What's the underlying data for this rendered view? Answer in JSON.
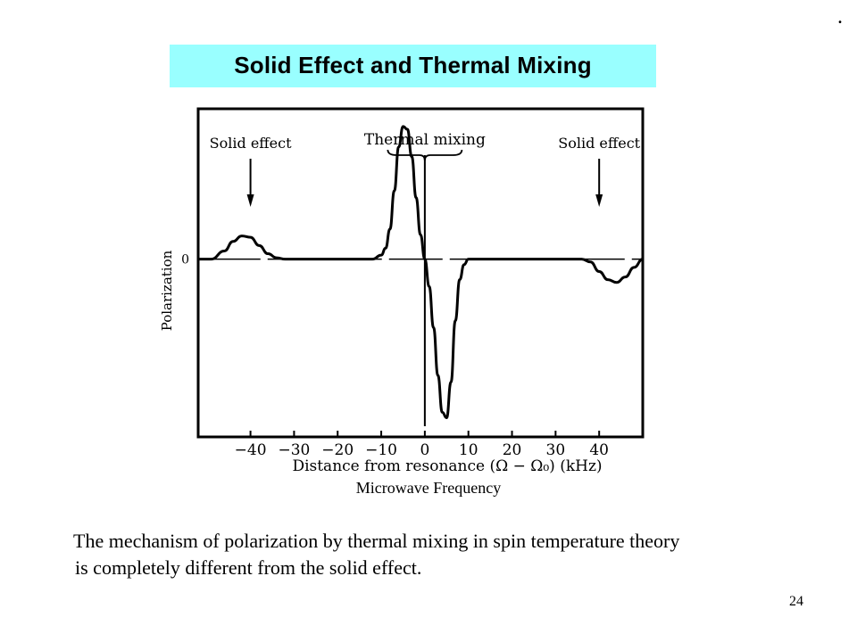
{
  "slide": {
    "corner_mark": ".",
    "title": "Solid Effect and Thermal Mixing",
    "figure_caption": "Microwave Frequency",
    "description_line1": "The mechanism of polarization by thermal mixing in spin temperature theory",
    "description_line2": "is completely different from the solid effect.",
    "page_number": "24",
    "title_bar_color": "#99ffff"
  },
  "chart_data": {
    "type": "line",
    "xlabel": "Distance from resonance (Ω − Ω₀) (kHz)",
    "ylabel": "Polarization",
    "xlim": [
      -52,
      50
    ],
    "ylim": [
      -1.3,
      1.1
    ],
    "x_tick_labels": [
      "−40",
      "−30",
      "−20",
      "−10",
      "0",
      "10",
      "20",
      "30",
      "40"
    ],
    "x_ticks": [
      -40,
      -30,
      -20,
      -10,
      0,
      10,
      20,
      30,
      40
    ],
    "y_tick_labels": [
      "0"
    ],
    "y_ticks": [
      0
    ],
    "annotations": [
      {
        "text": "Solid effect",
        "x": -40
      },
      {
        "text": "Thermal mixing",
        "x": 0
      },
      {
        "text": "Solid effect",
        "x": 40
      }
    ],
    "series": [
      {
        "x": [
          -52,
          -49,
          -46,
          -44,
          -42,
          -40,
          -38,
          -36,
          -34,
          -32,
          -28,
          -20,
          -12,
          -10,
          -9,
          -8,
          -7,
          -6,
          -5,
          -4,
          -3,
          -2,
          -1,
          0,
          1,
          2,
          3,
          4,
          5,
          6,
          7,
          8,
          9,
          10,
          12,
          20,
          30,
          36,
          38,
          40,
          42,
          44,
          46,
          48,
          50
        ],
        "y": [
          0,
          0,
          0.06,
          0.13,
          0.17,
          0.16,
          0.1,
          0.04,
          0.01,
          0,
          0,
          0,
          0,
          0.03,
          0.08,
          0.22,
          0.5,
          0.82,
          0.97,
          0.95,
          0.75,
          0.45,
          0.18,
          0,
          -0.2,
          -0.5,
          -0.85,
          -1.12,
          -1.16,
          -0.9,
          -0.45,
          -0.15,
          -0.04,
          0,
          0,
          0,
          0,
          0,
          -0.02,
          -0.09,
          -0.15,
          -0.17,
          -0.13,
          -0.06,
          0
        ]
      }
    ],
    "grid": false,
    "legend": "none"
  }
}
